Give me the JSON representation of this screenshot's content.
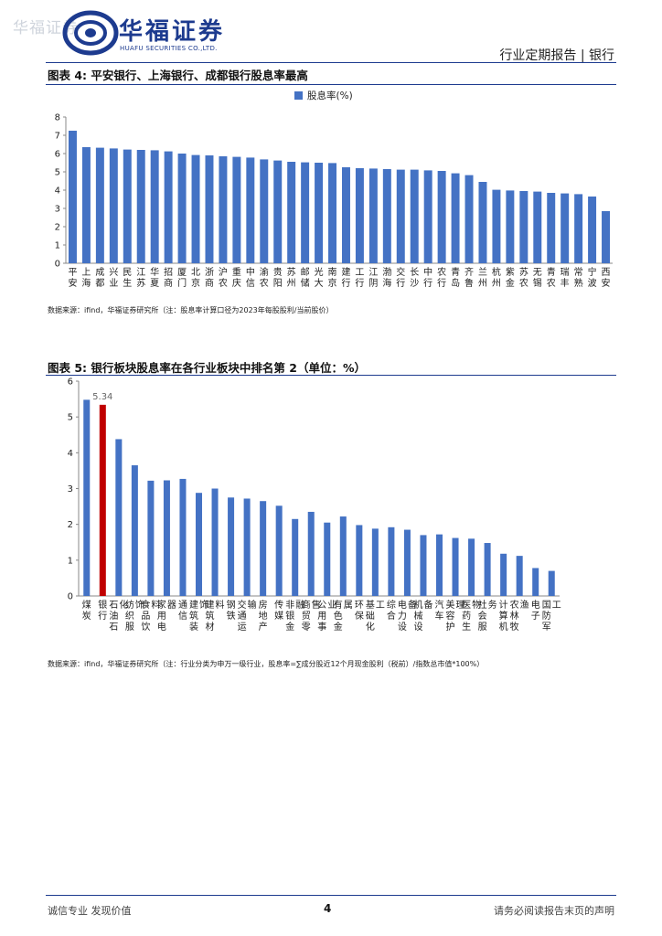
{
  "header": {
    "watermark": "华福证券",
    "brand_cn": "华福证券",
    "brand_en": "HUAFU SECURITIES CO.,LTD.",
    "report_type": "行业定期报告 | 银行"
  },
  "colors": {
    "bar": "#4472c4",
    "highlight": "#c00000",
    "brand": "#1d3b8f"
  },
  "figure4": {
    "title": "图表 4:  平安银行、上海银行、成都银行股息率最高",
    "source": "数据来源：ifind，华福证券研究所（注：股息率计算口径为2023年每股股利/当前股价）"
  },
  "figure5": {
    "title": "图表 5:  银行板块股息率在各行业板块中排名第 2（单位：%）",
    "source": "数据来源：ifind，华福证券研究所（注：行业分类为申万一级行业，股息率=∑成分股近12个月现金股利（税前）/指数总市值*100%）"
  },
  "chart_data": [
    {
      "type": "bar",
      "legend": "股息率(%)",
      "legend_position": "top-center",
      "ylim": [
        0,
        8
      ],
      "yticks": [
        0,
        1,
        2,
        3,
        4,
        5,
        6,
        7,
        8
      ],
      "grid": false,
      "categories": [
        "平安",
        "上海",
        "成都",
        "兴业",
        "民生",
        "江苏",
        "华夏",
        "招商",
        "厦门",
        "北京",
        "浙商",
        "沪农",
        "重庆",
        "中信",
        "渝农",
        "贵阳",
        "苏州",
        "邮储",
        "光大",
        "南京",
        "建设",
        "工商",
        "江阴",
        "渤海",
        "交通",
        "长沙",
        "中国",
        "农业",
        "青岛",
        "齐鲁",
        "兰州",
        "杭州",
        "紫金",
        "苏农",
        "无锡",
        "青农",
        "瑞丰",
        "常熟",
        "宁波",
        "西安"
      ],
      "category_display": [
        "平安",
        "上海",
        "成都",
        "兴业",
        "民生",
        "江苏",
        "华夏",
        "招商",
        "厦门",
        "北京",
        "浙商",
        "沪农",
        "重庆",
        "中信",
        "渝农",
        "贵阳",
        "苏州",
        "邮储",
        "光大",
        "南京",
        "建行",
        "工行",
        "江阴",
        "渤海",
        "交行",
        "长沙",
        "中行",
        "农行",
        "青岛",
        "齐鲁",
        "兰州",
        "杭州",
        "紫金",
        "苏农",
        "无锡",
        "青农",
        "瑞丰",
        "常熟",
        "宁波",
        "西安"
      ],
      "category_display_sub": [
        "",
        "",
        "",
        "",
        "",
        "",
        "",
        "",
        "",
        "",
        "",
        "",
        "",
        "",
        "",
        "",
        "",
        "",
        "",
        "",
        "",
        "",
        "",
        "",
        "",
        "",
        "",
        "",
        "",
        "",
        "",
        "",
        "",
        "",
        "",
        "",
        "",
        "",
        "",
        ""
      ],
      "values": [
        7.25,
        6.35,
        6.32,
        6.28,
        6.22,
        6.2,
        6.18,
        6.12,
        6.0,
        5.92,
        5.9,
        5.85,
        5.82,
        5.78,
        5.68,
        5.62,
        5.55,
        5.52,
        5.5,
        5.48,
        5.25,
        5.2,
        5.18,
        5.15,
        5.12,
        5.12,
        5.08,
        5.05,
        4.92,
        4.82,
        4.45,
        4.02,
        3.98,
        3.95,
        3.92,
        3.85,
        3.82,
        3.78,
        3.65,
        2.85
      ]
    },
    {
      "type": "bar",
      "ylim": [
        0,
        6
      ],
      "yticks": [
        0,
        1,
        2,
        3,
        4,
        5,
        6
      ],
      "grid": false,
      "highlight_index": 1,
      "data_labels": [
        {
          "index": 1,
          "text": "5.34"
        }
      ],
      "categories": [
        "煤炭",
        "银行",
        "石油石化",
        "纺织服饰",
        "食品饮料",
        "家用电器",
        "通信",
        "建筑装饰",
        "建筑材料",
        "钢铁",
        "交通运输",
        "房地产",
        "传媒",
        "非银金融",
        "商贸零售",
        "公用事业",
        "有色金属",
        "环保",
        "基础化工",
        "综合",
        "电力设备",
        "机械设备",
        "汽车",
        "美容护理",
        "医药生物",
        "社会服务",
        "计算机",
        "农林牧渔",
        "电子",
        "国防军工"
      ],
      "values": [
        5.48,
        5.34,
        4.38,
        3.65,
        3.22,
        3.23,
        3.27,
        2.88,
        3.0,
        2.75,
        2.72,
        2.65,
        2.52,
        2.15,
        2.35,
        2.05,
        2.22,
        1.98,
        1.88,
        1.92,
        1.85,
        1.7,
        1.72,
        1.62,
        1.6,
        1.48,
        1.18,
        1.12,
        0.78,
        0.7
      ]
    }
  ],
  "footer": {
    "left": "诚信专业  发现价值",
    "page": "4",
    "right": "请务必阅读报告末页的声明"
  }
}
